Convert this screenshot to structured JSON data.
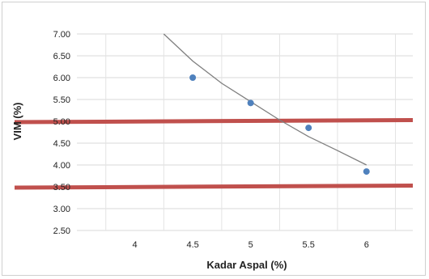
{
  "chart_data": {
    "type": "scatter",
    "xlabel": "Kadar Aspal (%)",
    "ylabel": "VIM (%)",
    "xlim": [
      3.5,
      6.4
    ],
    "ylim": [
      2.5,
      7.0
    ],
    "x_ticks": [
      4,
      4.5,
      5,
      5.5,
      6
    ],
    "x_tick_labels": [
      "4",
      "4.5",
      "5",
      "5.5",
      "6"
    ],
    "y_ticks": [
      2.5,
      3.0,
      3.5,
      4.0,
      4.5,
      5.0,
      5.5,
      6.0,
      6.5,
      7.0
    ],
    "y_tick_labels": [
      "2.50",
      "3.00",
      "3.50",
      "4.00",
      "4.50",
      "5.00",
      "5.50",
      "6.00",
      "6.50",
      "7.00"
    ],
    "grid": true,
    "series": [
      {
        "kind": "points",
        "x": [
          4.5,
          5.0,
          5.5,
          6.0
        ],
        "y": [
          6.0,
          5.42,
          4.85,
          3.85
        ],
        "color": "#4f81bd"
      },
      {
        "kind": "trendline",
        "x": [
          4.25,
          4.5,
          4.75,
          5.0,
          5.25,
          5.5,
          5.75,
          6.0
        ],
        "y": [
          7.0,
          6.38,
          5.87,
          5.45,
          5.03,
          4.65,
          4.33,
          4.0
        ],
        "color": "#7f7f7f"
      }
    ],
    "reference_lines": [
      {
        "y": 5.0,
        "color": "#c0504d"
      },
      {
        "y": 3.5,
        "color": "#c0504d"
      }
    ]
  }
}
